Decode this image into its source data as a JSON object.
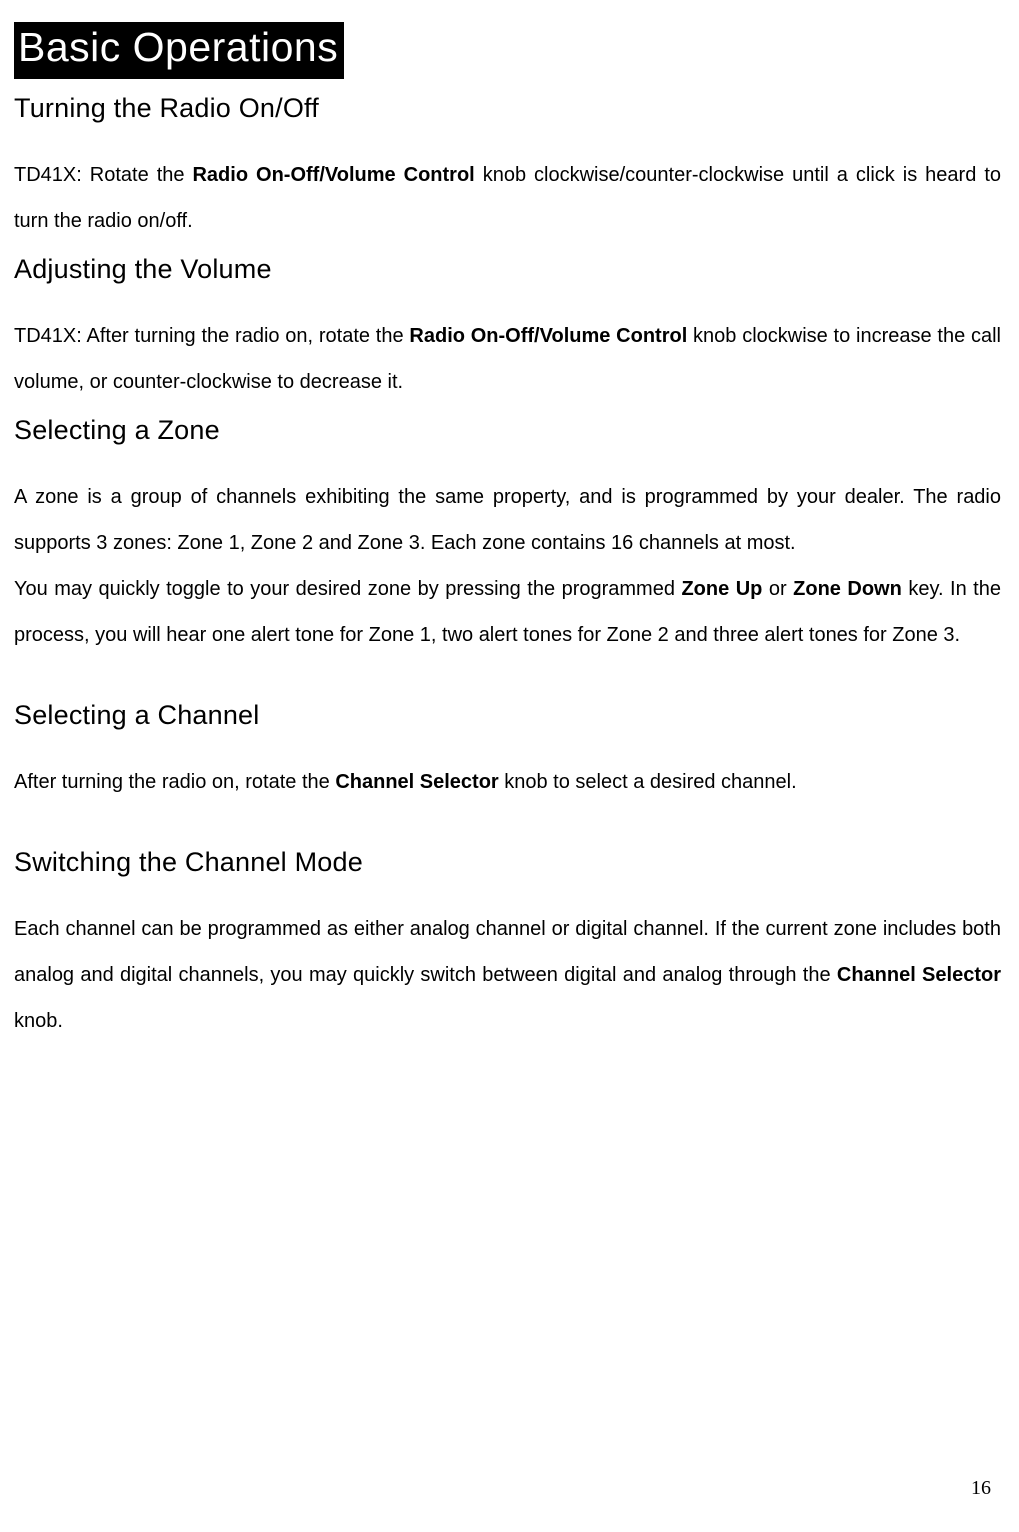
{
  "chapter_title": "Basic Operations",
  "sections": {
    "s1": {
      "heading": "Turning the Radio On/Off",
      "prefix": "TD41X: Rotate the ",
      "bold1": "Radio On-Off/Volume Control",
      "rest": " knob clockwise/counter-clockwise until a click is heard to turn the radio on/off."
    },
    "s2": {
      "heading": "Adjusting the Volume",
      "prefix": "TD41X: After turning the radio on, rotate the ",
      "bold1": "Radio On-Off/Volume Control",
      "rest": " knob clockwise to increase the call volume, or counter-clockwise to decrease it."
    },
    "s3": {
      "heading": "Selecting a Zone",
      "p1": "A zone is a group of channels exhibiting the same property, and is programmed by your dealer. The radio supports 3 zones: Zone 1, Zone 2 and Zone 3. Each zone contains 16 channels at most.",
      "p2_prefix": "You may quickly toggle to your desired zone by pressing the programmed ",
      "p2_bold1": "Zone Up",
      "p2_mid": " or ",
      "p2_bold2": "Zone Down",
      "p2_rest": " key. In the process, you will hear one alert tone for Zone 1, two alert tones for Zone 2 and three alert tones for Zone 3."
    },
    "s4": {
      "heading": "Selecting a Channel",
      "prefix": "After turning the radio on, rotate the ",
      "bold1": "Channel Selector",
      "rest": " knob to select a desired channel."
    },
    "s5": {
      "heading": "Switching the Channel Mode",
      "prefix": "Each channel can be programmed as either analog channel or digital channel. If the current zone includes both analog and digital channels, you may quickly switch between digital and analog through the ",
      "bold1": "Channel Selector",
      "rest": " knob."
    }
  },
  "page_number": "16"
}
